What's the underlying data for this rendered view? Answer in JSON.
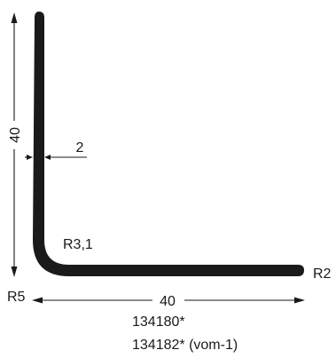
{
  "dimensions": {
    "height": "40",
    "width": "40",
    "thickness": "2",
    "inner_radius": "R3,1",
    "outer_corner_radius": "R5",
    "end_radius": "R2"
  },
  "part_numbers": {
    "line1": "134180*",
    "line2": "134182* (vom-1)"
  },
  "colors": {
    "profile": "#1a1a1a",
    "background": "#ffffff"
  }
}
